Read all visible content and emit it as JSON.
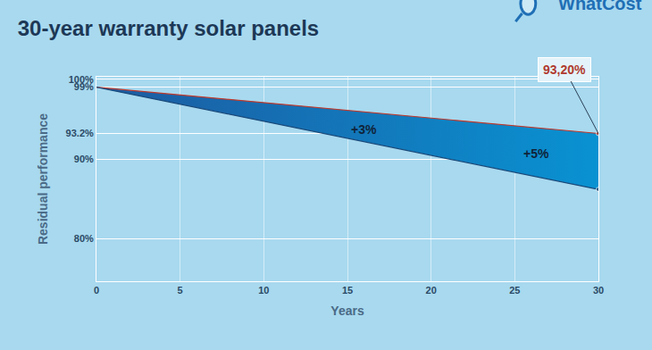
{
  "chart_data": {
    "type": "line",
    "title": "30-year warranty solar panels",
    "logo": "WhatCost",
    "x_label": "Years",
    "y_label": "Residual performance",
    "x": [
      0,
      30
    ],
    "series": [
      {
        "color": "#c0392b",
        "values": [
          99,
          93.2
        ]
      },
      {
        "color": "#1b4a7a",
        "values": [
          99,
          86.2
        ]
      }
    ],
    "xlim": [
      0,
      30
    ],
    "xticks": [
      0,
      5,
      10,
      15,
      20,
      25,
      30
    ],
    "ylim": [
      74.7,
      100.3
    ],
    "yticks": [
      {
        "value": 80,
        "label": "80%"
      },
      {
        "value": 90,
        "label": "90%"
      },
      {
        "value": 93.2,
        "label": "93.2%"
      },
      {
        "value": 99,
        "label": "99%"
      },
      {
        "value": 100,
        "label": "100%"
      }
    ],
    "grid": true,
    "annotations": [
      {
        "text": "+3%",
        "x": 16,
        "y": 93.7
      },
      {
        "text": "+5%",
        "x": 26.3,
        "y": 90.7
      }
    ],
    "callout": {
      "text": "93,20%",
      "x": 30,
      "y": 93.2
    }
  }
}
